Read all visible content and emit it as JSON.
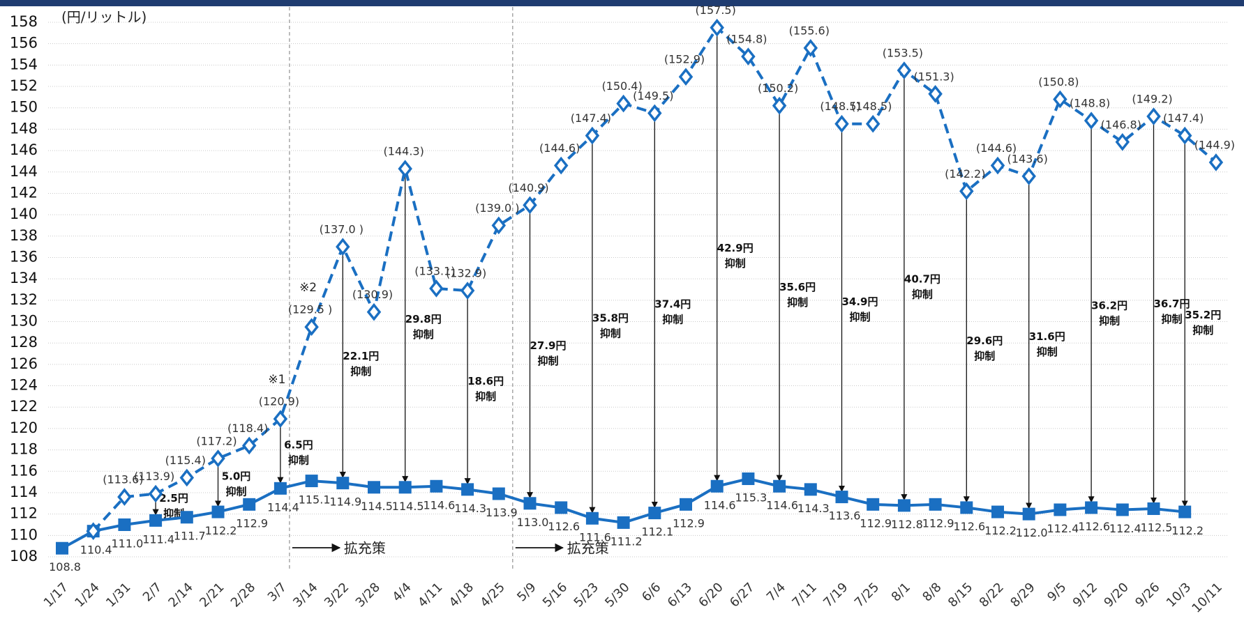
{
  "chart_data": {
    "type": "line",
    "unit_label": "(円/リットル)",
    "categories": [
      "1/17",
      "1/24",
      "1/31",
      "2/7",
      "2/14",
      "2/21",
      "2/28",
      "3/7",
      "3/14",
      "3/22",
      "3/28",
      "4/4",
      "4/11",
      "4/18",
      "4/25",
      "5/9",
      "5/16",
      "5/23",
      "5/30",
      "6/6",
      "6/13",
      "6/20",
      "6/27",
      "7/4",
      "7/11",
      "7/19",
      "7/25",
      "8/1",
      "8/8",
      "8/15",
      "8/22",
      "8/29",
      "9/5",
      "9/12",
      "9/20",
      "9/26",
      "10/3",
      "10/11"
    ],
    "series": [
      {
        "color": "#1a6fc2",
        "style": "solid",
        "marker": "square",
        "values": [
          108.8,
          110.4,
          111.0,
          111.4,
          111.7,
          112.2,
          112.9,
          114.4,
          115.1,
          114.9,
          114.5,
          114.5,
          114.6,
          114.3,
          113.9,
          113.0,
          112.6,
          111.6,
          111.2,
          112.1,
          112.9,
          114.6,
          115.3,
          114.6,
          114.3,
          113.6,
          112.9,
          112.8,
          112.9,
          112.6,
          112.2,
          112.0,
          112.4,
          112.6,
          112.4,
          112.5,
          112.2,
          null
        ],
        "value_labels": [
          "108.8",
          "110.4",
          "111.0",
          "111.4",
          "111.7",
          "112.2",
          "112.9",
          "114.4",
          "115.1",
          "114.9",
          "114.5",
          "114.5",
          "114.6",
          "114.3",
          "113.9",
          "113.0",
          "112.6",
          "111.6",
          "111.2",
          "112.1",
          "112.9",
          "114.6",
          "115.3",
          "114.6",
          "114.3",
          "113.6",
          "112.9",
          "112.8",
          "112.9",
          "112.6",
          "112.2",
          "112.0",
          "112.4",
          "112.6",
          "112.4",
          "112.5",
          "112.2",
          null
        ]
      },
      {
        "color": "#1a6fc2",
        "style": "dashed",
        "marker": "diamond",
        "values": [
          null,
          110.4,
          113.6,
          113.9,
          115.4,
          117.2,
          118.4,
          120.9,
          129.5,
          137.0,
          130.9,
          144.3,
          133.1,
          132.9,
          139.0,
          140.9,
          144.6,
          147.4,
          150.4,
          149.5,
          152.9,
          157.5,
          154.8,
          150.2,
          155.6,
          148.5,
          148.5,
          153.5,
          151.3,
          142.2,
          144.6,
          143.6,
          150.8,
          148.8,
          146.8,
          149.2,
          147.4,
          144.9
        ],
        "value_labels": [
          null,
          null,
          "(113.6)",
          "(113.9)",
          "(115.4)",
          "(117.2)",
          "(118.4)",
          "(120.9)",
          "(129.5 )",
          "(137.0 )",
          "(130.9)",
          "(144.3)",
          "(133.1)",
          "(132.9)",
          "(139.0 )",
          "(140.9)",
          "(144.6)",
          "(147.4)",
          "(150.4)",
          "(149.5)",
          "(152.9)",
          "(157.5)",
          "(154.8)",
          "(150.2)",
          "(155.6)",
          "(148.5)",
          "(148.5)",
          "(153.5)",
          "(151.3)",
          "(142.2)",
          "(144.6)",
          "(143.6)",
          "(150.8)",
          "(148.8)",
          "(146.8)",
          "(149.2)",
          "(147.4)",
          "(144.9)"
        ]
      }
    ],
    "suppression": {
      "x": [
        "2/7",
        "2/21",
        "3/7",
        "3/22",
        "4/4",
        "4/18",
        "5/9",
        "5/23",
        "6/6",
        "6/20",
        "7/4",
        "7/19",
        "8/1",
        "8/15",
        "8/29",
        "9/12",
        "9/26",
        "10/3"
      ],
      "values": [
        2.5,
        5.0,
        6.5,
        22.1,
        29.8,
        18.6,
        27.9,
        35.8,
        37.4,
        42.9,
        35.6,
        34.9,
        40.7,
        29.6,
        31.6,
        36.2,
        36.7,
        35.2
      ],
      "value_labels": [
        "2.5円",
        "5.0円",
        "6.5円",
        "22.1円",
        "29.8円",
        "18.6円",
        "27.9円",
        "35.8円",
        "37.4円",
        "42.9円",
        "35.6円",
        "34.9円",
        "40.7円",
        "29.6円",
        "31.6円",
        "36.2円",
        "36.7円",
        "35.2円"
      ],
      "word": "抑制"
    },
    "notes": [
      {
        "x": "3/7",
        "text": "※1"
      },
      {
        "x": "3/14",
        "text": "※2"
      }
    ],
    "expansions": [
      {
        "x": "3/7",
        "text": "拡充策"
      },
      {
        "x": "4/25",
        "text": "拡充策"
      }
    ],
    "ylim": [
      108,
      158
    ],
    "yticks": [
      108,
      110,
      112,
      114,
      116,
      118,
      120,
      122,
      124,
      126,
      128,
      130,
      132,
      134,
      136,
      138,
      140,
      142,
      144,
      146,
      148,
      150,
      152,
      154,
      156,
      158
    ],
    "grid": true
  }
}
